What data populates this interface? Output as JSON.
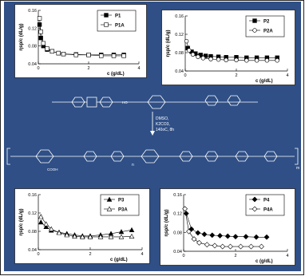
{
  "colors": {
    "background": "#2f4f86",
    "card": "#ffffff",
    "ink": "#000000",
    "line": "#222222",
    "fill_marker": "#000000",
    "open_marker": "#ffffff"
  },
  "scheme": {
    "reagents": [
      "DMSO,",
      "K2CO3,",
      "140oC, 8h"
    ],
    "hydroxyl": "HO",
    "carboxyl": "COOH",
    "sub_n": "n",
    "sub_m": "m"
  },
  "chart_data": [
    {
      "type": "scatter",
      "xlabel": "c (g/dL)",
      "ylabel": "ηsp/c (dL/g)",
      "yticklabels": [
        "0.04",
        "0.08",
        "0.12",
        "0.16"
      ],
      "xticklabels": [
        "0",
        "2",
        "4"
      ],
      "xlim": [
        0,
        4
      ],
      "ylim": [
        0.04,
        0.16
      ],
      "legend_position": "top-right",
      "series": [
        {
          "name": "P1",
          "marker": "filled-square",
          "x": [
            0.05,
            0.1,
            0.2,
            0.35,
            0.55,
            0.8,
            1.0,
            1.5,
            2.0,
            2.5,
            3.0,
            3.4
          ],
          "values": [
            0.128,
            0.098,
            0.08,
            0.072,
            0.068,
            0.064,
            0.062,
            0.061,
            0.06,
            0.06,
            0.06,
            0.06
          ]
        },
        {
          "name": "P1A",
          "marker": "open-square",
          "x": [
            0.05,
            0.1,
            0.2,
            0.35,
            0.55,
            0.8,
            1.0,
            1.5,
            2.0,
            2.5,
            3.0,
            3.4
          ],
          "values": [
            0.142,
            0.112,
            0.086,
            0.074,
            0.068,
            0.064,
            0.062,
            0.06,
            0.06,
            0.058,
            0.058,
            0.058
          ]
        }
      ]
    },
    {
      "type": "scatter",
      "xlabel": "c (g/dL)",
      "ylabel": "ηsp/c (dL/g)",
      "yticklabels": [
        "0.04",
        "0.08",
        "0.12",
        "0.16"
      ],
      "xticklabels": [
        "0",
        "2",
        "4"
      ],
      "xlim": [
        0,
        4
      ],
      "ylim": [
        0.04,
        0.16
      ],
      "legend_position": "top-right",
      "series": [
        {
          "name": "P2",
          "marker": "filled-square",
          "x": [
            0.1,
            0.25,
            0.4,
            0.6,
            0.8,
            1.0,
            1.3,
            1.6,
            2.0,
            2.4,
            2.8,
            3.2,
            3.6
          ],
          "values": [
            0.09,
            0.082,
            0.078,
            0.075,
            0.073,
            0.072,
            0.071,
            0.07,
            0.07,
            0.069,
            0.069,
            0.069,
            0.069
          ]
        },
        {
          "name": "P2A",
          "marker": "open-circle",
          "x": [
            0.05,
            0.15,
            0.3,
            0.5,
            0.7,
            1.0,
            1.3,
            1.6,
            2.0,
            2.4,
            2.8,
            3.2,
            3.6
          ],
          "values": [
            0.105,
            0.085,
            0.076,
            0.071,
            0.068,
            0.066,
            0.065,
            0.064,
            0.064,
            0.063,
            0.063,
            0.063,
            0.063
          ]
        }
      ]
    },
    {
      "type": "scatter",
      "xlabel": "c (g/dL)",
      "ylabel": "ηsp/c (dL/g)",
      "yticklabels": [
        "0.04",
        "0.08",
        "0.12",
        "0.16"
      ],
      "xticklabels": [
        "0",
        "2",
        "4"
      ],
      "xlim": [
        0,
        4
      ],
      "ylim": [
        0.04,
        0.16
      ],
      "legend_position": "top-right",
      "series": [
        {
          "name": "P3",
          "marker": "filled-triangle",
          "x": [
            0.1,
            0.3,
            0.5,
            0.8,
            1.1,
            1.4,
            1.7,
            2.0,
            2.4,
            2.8,
            3.2,
            3.6
          ],
          "values": [
            0.1,
            0.09,
            0.082,
            0.078,
            0.075,
            0.072,
            0.07,
            0.07,
            0.072,
            0.075,
            0.079,
            0.083
          ]
        },
        {
          "name": "P3A",
          "marker": "open-triangle",
          "x": [
            0.1,
            0.3,
            0.5,
            0.8,
            1.1,
            1.4,
            1.7,
            2.0,
            2.4,
            2.8,
            3.2,
            3.6
          ],
          "values": [
            0.112,
            0.096,
            0.085,
            0.077,
            0.072,
            0.069,
            0.068,
            0.068,
            0.068,
            0.068,
            0.068,
            0.069
          ]
        }
      ]
    },
    {
      "type": "scatter",
      "xlabel": "c (g/dL)",
      "ylabel": "ηsp/c (dL/g)",
      "yticklabels": [
        "0.04",
        "0.08",
        "0.12",
        "0.16"
      ],
      "xticklabels": [
        "0",
        "2",
        "4"
      ],
      "xlim": [
        0,
        4
      ],
      "ylim": [
        0.04,
        0.16
      ],
      "legend_position": "top-right",
      "series": [
        {
          "name": "P4",
          "marker": "filled-diamond",
          "x": [
            0.1,
            0.3,
            0.55,
            0.8,
            1.1,
            1.4,
            1.7,
            2.0,
            2.4,
            2.8,
            3.2
          ],
          "values": [
            0.12,
            0.087,
            0.079,
            0.076,
            0.074,
            0.073,
            0.072,
            0.071,
            0.071,
            0.07,
            0.07
          ]
        },
        {
          "name": "P4A",
          "marker": "open-diamond",
          "x": [
            0.05,
            0.2,
            0.4,
            0.6,
            0.9,
            1.2,
            1.5,
            1.8,
            2.2,
            2.6,
            3.0
          ],
          "values": [
            0.13,
            0.082,
            0.066,
            0.058,
            0.054,
            0.052,
            0.05,
            0.05,
            0.05,
            0.05,
            0.05
          ]
        }
      ]
    }
  ]
}
